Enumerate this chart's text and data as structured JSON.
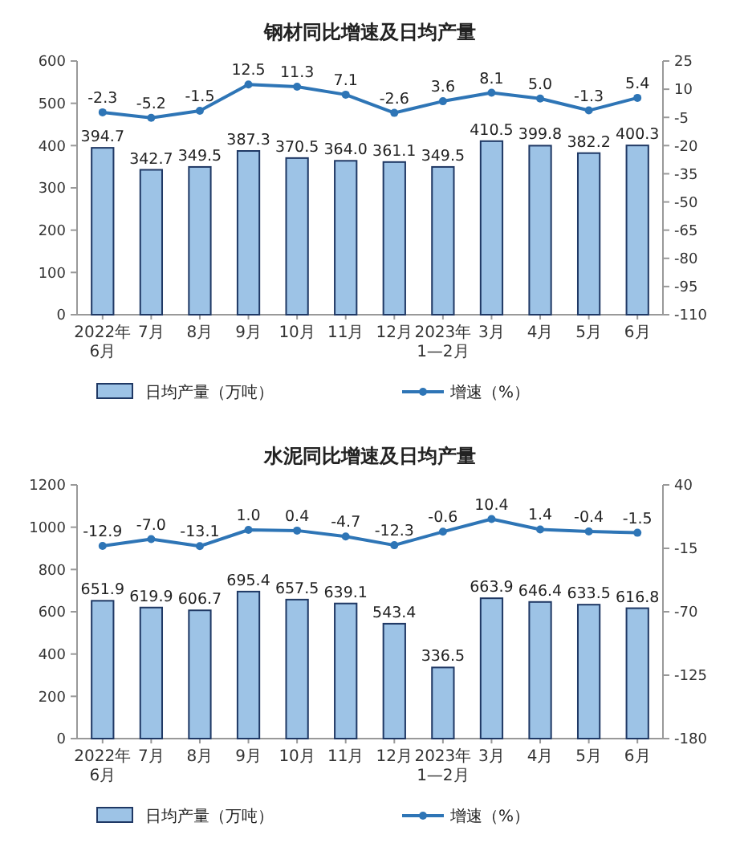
{
  "chart_data": [
    {
      "type": "bar",
      "title": "钢材同比增速及日均产量",
      "categories": [
        "2022年\n6月",
        "7月",
        "8月",
        "9月",
        "10月",
        "11月",
        "12月",
        "2023年\n1—2月",
        "3月",
        "4月",
        "5月",
        "6月"
      ],
      "series": [
        {
          "name": "日均产量（万吨）",
          "color": "#9dc3e6",
          "values": [
            394.7,
            342.7,
            349.5,
            387.3,
            370.5,
            364.0,
            361.1,
            349.5,
            410.5,
            399.8,
            382.2,
            400.3
          ],
          "value_labels": [
            "394.7",
            "342.7",
            "349.5",
            "387.3",
            "370.5",
            "364.0",
            "361.1",
            "349.5",
            "410.5",
            "399.8",
            "382.2",
            "400.3"
          ]
        },
        {
          "name": "增速（%）",
          "type": "line",
          "axis": "y2",
          "color": "#2e75b6",
          "values": [
            -2.3,
            -5.2,
            -1.5,
            12.5,
            11.3,
            7.1,
            -2.6,
            3.6,
            8.1,
            5.0,
            -1.3,
            5.4
          ],
          "value_labels": [
            "-2.3",
            "-5.2",
            "-1.5",
            "12.5",
            "11.3",
            "7.1",
            "-2.6",
            "3.6",
            "8.1",
            "5.0",
            "-1.3",
            "5.4"
          ]
        }
      ],
      "ylim": [
        0,
        600
      ],
      "yticks": [
        0,
        100,
        200,
        300,
        400,
        500,
        600
      ],
      "y2lim": [
        -110,
        25
      ],
      "y2ticks": [
        -110,
        -95,
        -80,
        -65,
        -50,
        -35,
        -20,
        -5,
        10,
        25
      ],
      "legend": "bottom",
      "marker": "circle"
    },
    {
      "type": "bar",
      "title": "水泥同比增速及日均产量",
      "categories": [
        "2022年\n6月",
        "7月",
        "8月",
        "9月",
        "10月",
        "11月",
        "12月",
        "2023年\n1—2月",
        "3月",
        "4月",
        "5月",
        "6月"
      ],
      "series": [
        {
          "name": "日均产量（万吨）",
          "color": "#9dc3e6",
          "values": [
            651.9,
            619.9,
            606.7,
            695.4,
            657.5,
            639.1,
            543.4,
            336.5,
            663.9,
            646.4,
            633.5,
            616.8
          ],
          "value_labels": [
            "651.9",
            "619.9",
            "606.7",
            "695.4",
            "657.5",
            "639.1",
            "543.4",
            "336.5",
            "663.9",
            "646.4",
            "633.5",
            "616.8"
          ]
        },
        {
          "name": "增速（%）",
          "type": "line",
          "axis": "y2",
          "color": "#2e75b6",
          "values": [
            -12.9,
            -7.0,
            -13.1,
            1.0,
            0.4,
            -4.7,
            -12.3,
            -0.6,
            10.4,
            1.4,
            -0.4,
            -1.5
          ],
          "value_labels": [
            "-12.9",
            "-7.0",
            "-13.1",
            "1.0",
            "0.4",
            "-4.7",
            "-12.3",
            "-0.6",
            "10.4",
            "1.4",
            "-0.4",
            "-1.5"
          ]
        }
      ],
      "ylim": [
        0,
        1200
      ],
      "yticks": [
        0,
        200,
        400,
        600,
        800,
        1000,
        1200
      ],
      "y2lim": [
        -180,
        40
      ],
      "y2ticks": [
        -180,
        -125,
        -70,
        -15,
        40
      ],
      "legend": "bottom",
      "marker": "circle"
    }
  ]
}
